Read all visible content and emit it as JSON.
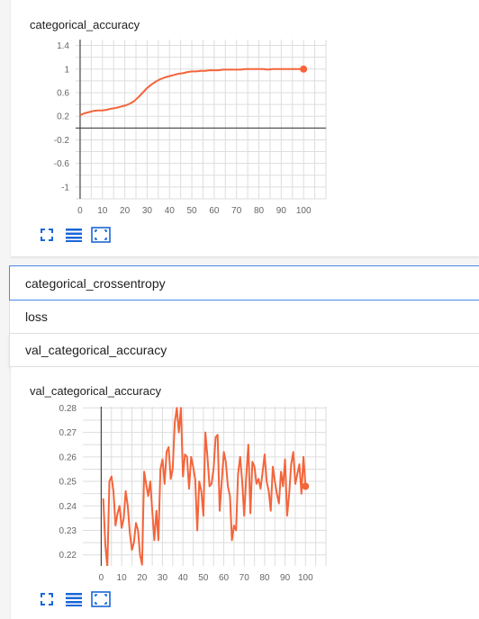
{
  "colors": {
    "series": "#f4653b",
    "axis": "#444444",
    "grid": "#dddddd",
    "icon": "#1a66d6",
    "selected_border": "#4a89e8"
  },
  "toolbar_icons": [
    "expand-icon",
    "list-icon",
    "fit-domain-icon"
  ],
  "charts": [
    {
      "title": "categorical_accuracy",
      "chart_data": {
        "type": "line",
        "title": "categorical_accuracy",
        "xlabel": "",
        "ylabel": "",
        "xlim": [
          -2,
          110
        ],
        "ylim": [
          -1.2,
          1.5
        ],
        "x_ticks": [
          0,
          10,
          20,
          30,
          40,
          50,
          60,
          70,
          80,
          90,
          100
        ],
        "y_ticks": [
          1.4,
          1,
          0.6,
          0.2,
          -0.2,
          -0.6,
          -1
        ],
        "y_tick_labels": [
          "1.4",
          "1",
          "0.6",
          "0.2",
          "-0.2",
          "-0.6",
          "-1"
        ],
        "grid": true,
        "series": [
          {
            "x": [
              0,
              2,
              4,
              6,
              8,
              10,
              12,
              14,
              16,
              18,
              20,
              22,
              24,
              26,
              28,
              30,
              32,
              34,
              36,
              38,
              40,
              42,
              44,
              46,
              48,
              50,
              52,
              54,
              56,
              58,
              60,
              62,
              64,
              66,
              68,
              70,
              72,
              74,
              76,
              78,
              80,
              82,
              84,
              86,
              88,
              90,
              92,
              94,
              96,
              98,
              100
            ],
            "y": [
              0.22,
              0.25,
              0.27,
              0.29,
              0.3,
              0.3,
              0.31,
              0.33,
              0.34,
              0.36,
              0.38,
              0.41,
              0.45,
              0.52,
              0.6,
              0.68,
              0.74,
              0.79,
              0.83,
              0.86,
              0.88,
              0.9,
              0.92,
              0.93,
              0.95,
              0.96,
              0.96,
              0.97,
              0.97,
              0.98,
              0.98,
              0.98,
              0.99,
              0.99,
              0.99,
              0.99,
              0.99,
              1.0,
              1.0,
              1.0,
              1.0,
              1.0,
              0.99,
              1.0,
              1.0,
              1.0,
              1.0,
              1.0,
              1.0,
              1.0,
              1.0
            ]
          }
        ]
      }
    },
    {
      "title": "val_categorical_accuracy",
      "chart_data": {
        "type": "line",
        "title": "val_categorical_accuracy",
        "xlabel": "",
        "ylabel": "",
        "xlim": [
          -9,
          110
        ],
        "ylim": [
          0.2155,
          0.2805
        ],
        "x_ticks": [
          0,
          10,
          20,
          30,
          40,
          50,
          60,
          70,
          80,
          90,
          100
        ],
        "y_ticks": [
          0.28,
          0.27,
          0.26,
          0.25,
          0.24,
          0.23,
          0.22
        ],
        "y_tick_labels": [
          "0.28",
          "0.27",
          "0.26",
          "0.25",
          "0.24",
          "0.23",
          "0.22"
        ],
        "grid": true,
        "series": [
          {
            "x": [
              1,
              2,
              3,
              4,
              5,
              6,
              7,
              8,
              9,
              10,
              11,
              12,
              13,
              14,
              15,
              16,
              17,
              18,
              19,
              20,
              21,
              22,
              23,
              24,
              25,
              26,
              27,
              28,
              29,
              30,
              31,
              32,
              33,
              34,
              35,
              36,
              37,
              38,
              39,
              40,
              41,
              42,
              43,
              44,
              45,
              46,
              47,
              48,
              49,
              50,
              51,
              52,
              53,
              54,
              55,
              56,
              57,
              58,
              59,
              60,
              61,
              62,
              63,
              64,
              65,
              66,
              67,
              68,
              69,
              70,
              71,
              72,
              73,
              74,
              75,
              76,
              77,
              78,
              79,
              80,
              81,
              82,
              83,
              84,
              85,
              86,
              87,
              88,
              89,
              90,
              91,
              92,
              93,
              94,
              95,
              96,
              97,
              98,
              99,
              100
            ],
            "y": [
              0.243,
              0.224,
              0.215,
              0.25,
              0.252,
              0.246,
              0.232,
              0.237,
              0.24,
              0.231,
              0.235,
              0.246,
              0.24,
              0.229,
              0.222,
              0.225,
              0.233,
              0.23,
              0.22,
              0.216,
              0.254,
              0.249,
              0.244,
              0.25,
              0.238,
              0.226,
              0.238,
              0.226,
              0.255,
              0.259,
              0.249,
              0.262,
              0.264,
              0.251,
              0.255,
              0.274,
              0.28,
              0.27,
              0.28,
              0.252,
              0.261,
              0.26,
              0.247,
              0.26,
              0.256,
              0.251,
              0.23,
              0.25,
              0.246,
              0.236,
              0.27,
              0.26,
              0.248,
              0.249,
              0.255,
              0.268,
              0.269,
              0.238,
              0.25,
              0.262,
              0.258,
              0.248,
              0.244,
              0.226,
              0.232,
              0.23,
              0.253,
              0.26,
              0.25,
              0.236,
              0.252,
              0.265,
              0.237,
              0.258,
              0.256,
              0.249,
              0.251,
              0.247,
              0.254,
              0.261,
              0.25,
              0.246,
              0.238,
              0.256,
              0.25,
              0.245,
              0.241,
              0.254,
              0.248,
              0.259,
              0.236,
              0.245,
              0.257,
              0.262,
              0.249,
              0.253,
              0.257,
              0.245,
              0.26,
              0.248
            ]
          }
        ]
      }
    }
  ],
  "tags": [
    {
      "label": "categorical_crossentropy",
      "selected": true
    },
    {
      "label": "loss",
      "selected": false
    },
    {
      "label": "val_categorical_accuracy",
      "selected": false
    }
  ]
}
